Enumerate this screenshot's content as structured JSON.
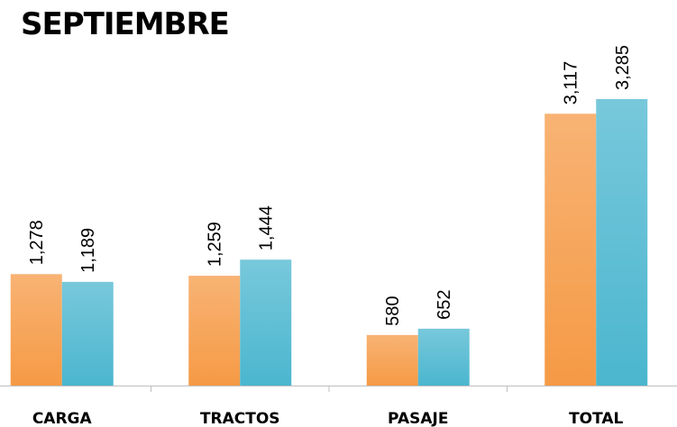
{
  "chart_data": {
    "type": "bar",
    "title": "SEPTIEMBRE",
    "categories": [
      "CARGA",
      "TRACTOS",
      "PASAJE",
      "TOTAL"
    ],
    "series": [
      {
        "color": "#f59a45",
        "values": [
          1278,
          1259,
          580,
          3117
        ],
        "value_labels": [
          "1,278",
          "1,259",
          "580",
          "3,117"
        ]
      },
      {
        "color": "#4bb6cf",
        "values": [
          1189,
          1444,
          652,
          3285
        ],
        "value_labels": [
          "1,189",
          "1,444",
          "652",
          "3,285"
        ]
      }
    ]
  }
}
